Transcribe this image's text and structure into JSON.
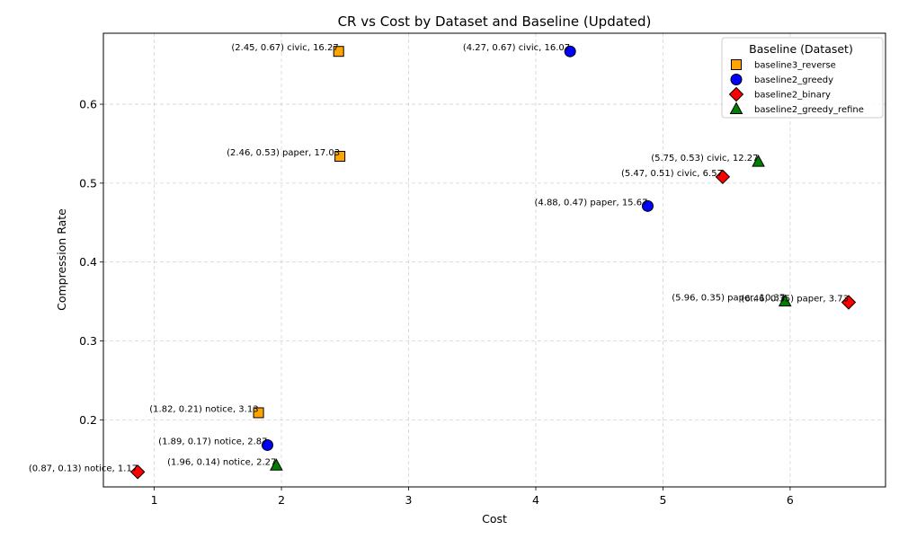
{
  "chart_data": {
    "type": "scatter",
    "title": "CR vs Cost by Dataset and Baseline (Updated)",
    "xlabel": "Cost",
    "ylabel": "Compression Rate",
    "xlim": [
      0.6,
      6.75
    ],
    "ylim": [
      0.115,
      0.69
    ],
    "xticks": [
      1,
      2,
      3,
      4,
      5,
      6
    ],
    "yticks": [
      0.2,
      0.3,
      0.4,
      0.5,
      0.6
    ],
    "grid": true,
    "legend": {
      "title": "Baseline (Dataset)",
      "position": "top-right"
    },
    "series": [
      {
        "name": "baseline3_reverse",
        "marker": "square",
        "color": "#FFA500",
        "points": [
          {
            "x": 2.45,
            "y": 0.667,
            "label": "(2.45, 0.67) civic, 16.27"
          },
          {
            "x": 2.46,
            "y": 0.534,
            "label": "(2.46, 0.53) paper, 17.03"
          },
          {
            "x": 1.82,
            "y": 0.209,
            "label": "(1.82, 0.21) notice, 3.13"
          }
        ]
      },
      {
        "name": "baseline2_greedy",
        "marker": "circle",
        "color": "#0000FF",
        "points": [
          {
            "x": 4.27,
            "y": 0.667,
            "label": "(4.27, 0.67) civic, 16.07"
          },
          {
            "x": 4.88,
            "y": 0.471,
            "label": "(4.88, 0.47) paper, 15.67"
          },
          {
            "x": 1.89,
            "y": 0.168,
            "label": "(1.89, 0.17) notice, 2.87"
          }
        ]
      },
      {
        "name": "baseline2_binary",
        "marker": "diamond",
        "color": "#FF0000",
        "points": [
          {
            "x": 5.47,
            "y": 0.508,
            "label": "(5.47, 0.51) civic, 6.57"
          },
          {
            "x": 6.46,
            "y": 0.349,
            "label": "(6.46, 0.35) paper, 3.73"
          },
          {
            "x": 0.87,
            "y": 0.134,
            "label": "(0.87, 0.13) notice, 1.17"
          }
        ]
      },
      {
        "name": "baseline2_greedy_refine",
        "marker": "triangle",
        "color": "#008000",
        "points": [
          {
            "x": 5.75,
            "y": 0.527,
            "label": "(5.75, 0.53) civic, 12.27"
          },
          {
            "x": 5.96,
            "y": 0.35,
            "label": "(5.96, 0.35) paper, 10.37"
          },
          {
            "x": 1.96,
            "y": 0.142,
            "label": "(1.96, 0.14) notice, 2.27"
          }
        ]
      }
    ]
  }
}
